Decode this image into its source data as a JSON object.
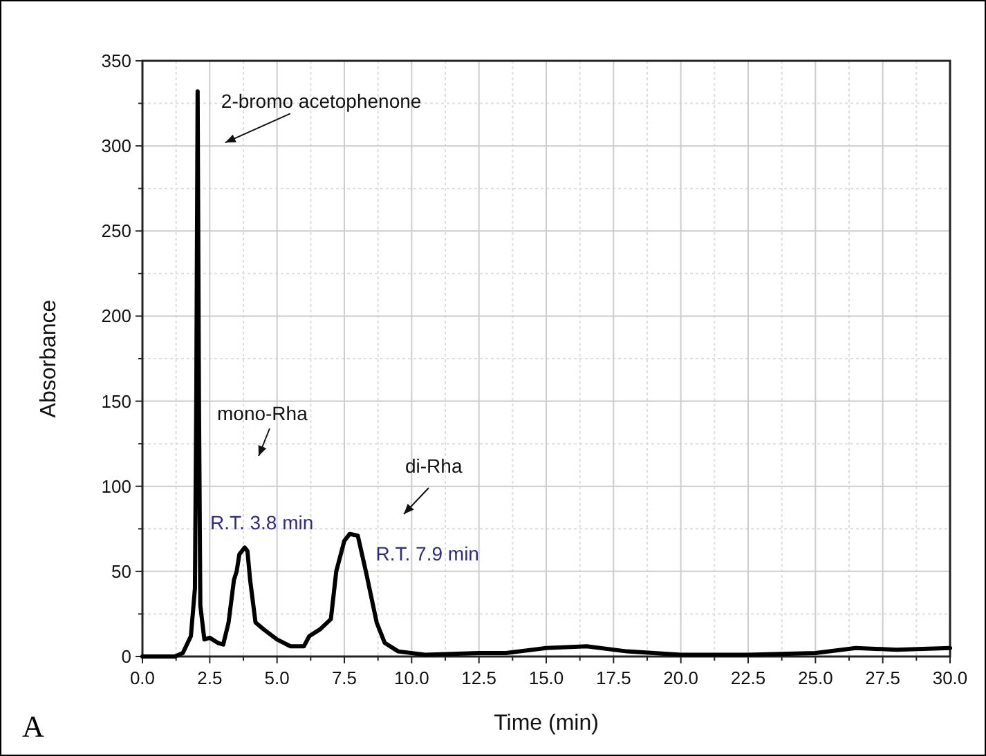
{
  "chart_data": {
    "type": "line",
    "xlabel": "Time (min)",
    "ylabel": "Absorbance",
    "x": [
      0,
      1.2,
      1.5,
      1.8,
      1.95,
      2.0,
      2.05,
      2.1,
      2.15,
      2.3,
      2.5,
      2.8,
      3.0,
      3.2,
      3.4,
      3.5,
      3.6,
      3.8,
      3.9,
      4.0,
      4.2,
      4.5,
      5.0,
      5.5,
      6.0,
      6.2,
      6.6,
      7.0,
      7.2,
      7.5,
      7.7,
      8.0,
      8.3,
      8.7,
      9.0,
      9.5,
      10.5,
      12.5,
      13.5,
      15,
      16.5,
      18,
      20,
      22.5,
      25,
      26.5,
      28,
      30
    ],
    "series": [
      {
        "color": "#000000",
        "values": [
          0,
          0,
          2,
          12,
          40,
          150,
          332,
          150,
          30,
          10,
          11,
          8,
          7,
          20,
          45,
          50,
          60,
          64,
          62,
          45,
          20,
          16,
          10,
          6,
          6,
          12,
          16,
          22,
          50,
          68,
          72,
          71,
          50,
          20,
          8,
          3,
          1,
          2,
          2,
          5,
          6,
          3,
          1,
          1,
          2,
          5,
          4,
          5
        ]
      }
    ],
    "xlim": [
      0,
      30
    ],
    "ylim": [
      0,
      350
    ],
    "xticks": [
      {
        "value": 0,
        "label": "0.0"
      },
      {
        "value": 2.5,
        "label": "2.5"
      },
      {
        "value": 5,
        "label": "5.0"
      },
      {
        "value": 7.5,
        "label": "7.5"
      },
      {
        "value": 10,
        "label": "10.0"
      },
      {
        "value": 12.5,
        "label": "12.5"
      },
      {
        "value": 15,
        "label": "15.0"
      },
      {
        "value": 17.5,
        "label": "17.5"
      },
      {
        "value": 20,
        "label": "20.0"
      },
      {
        "value": 22.5,
        "label": "22.5"
      },
      {
        "value": 25,
        "label": "25.0"
      },
      {
        "value": 27.5,
        "label": "27.5"
      },
      {
        "value": 30,
        "label": "30.0"
      }
    ],
    "yticks": [
      0,
      50,
      100,
      150,
      200,
      250,
      300,
      350
    ],
    "grid": true,
    "marker": "none",
    "line_style": "solid",
    "annotations": [
      {
        "text": "2-bromo acetophenone",
        "x": 2.05,
        "y": 332
      },
      "mono-Rha",
      {
        "text": "R.T. 3.8 min",
        "x": 3.8,
        "y": 64
      },
      "di-Rha",
      {
        "text": "R.T. 7.9 min",
        "x": 7.9,
        "y": 72
      },
      "A"
    ]
  }
}
